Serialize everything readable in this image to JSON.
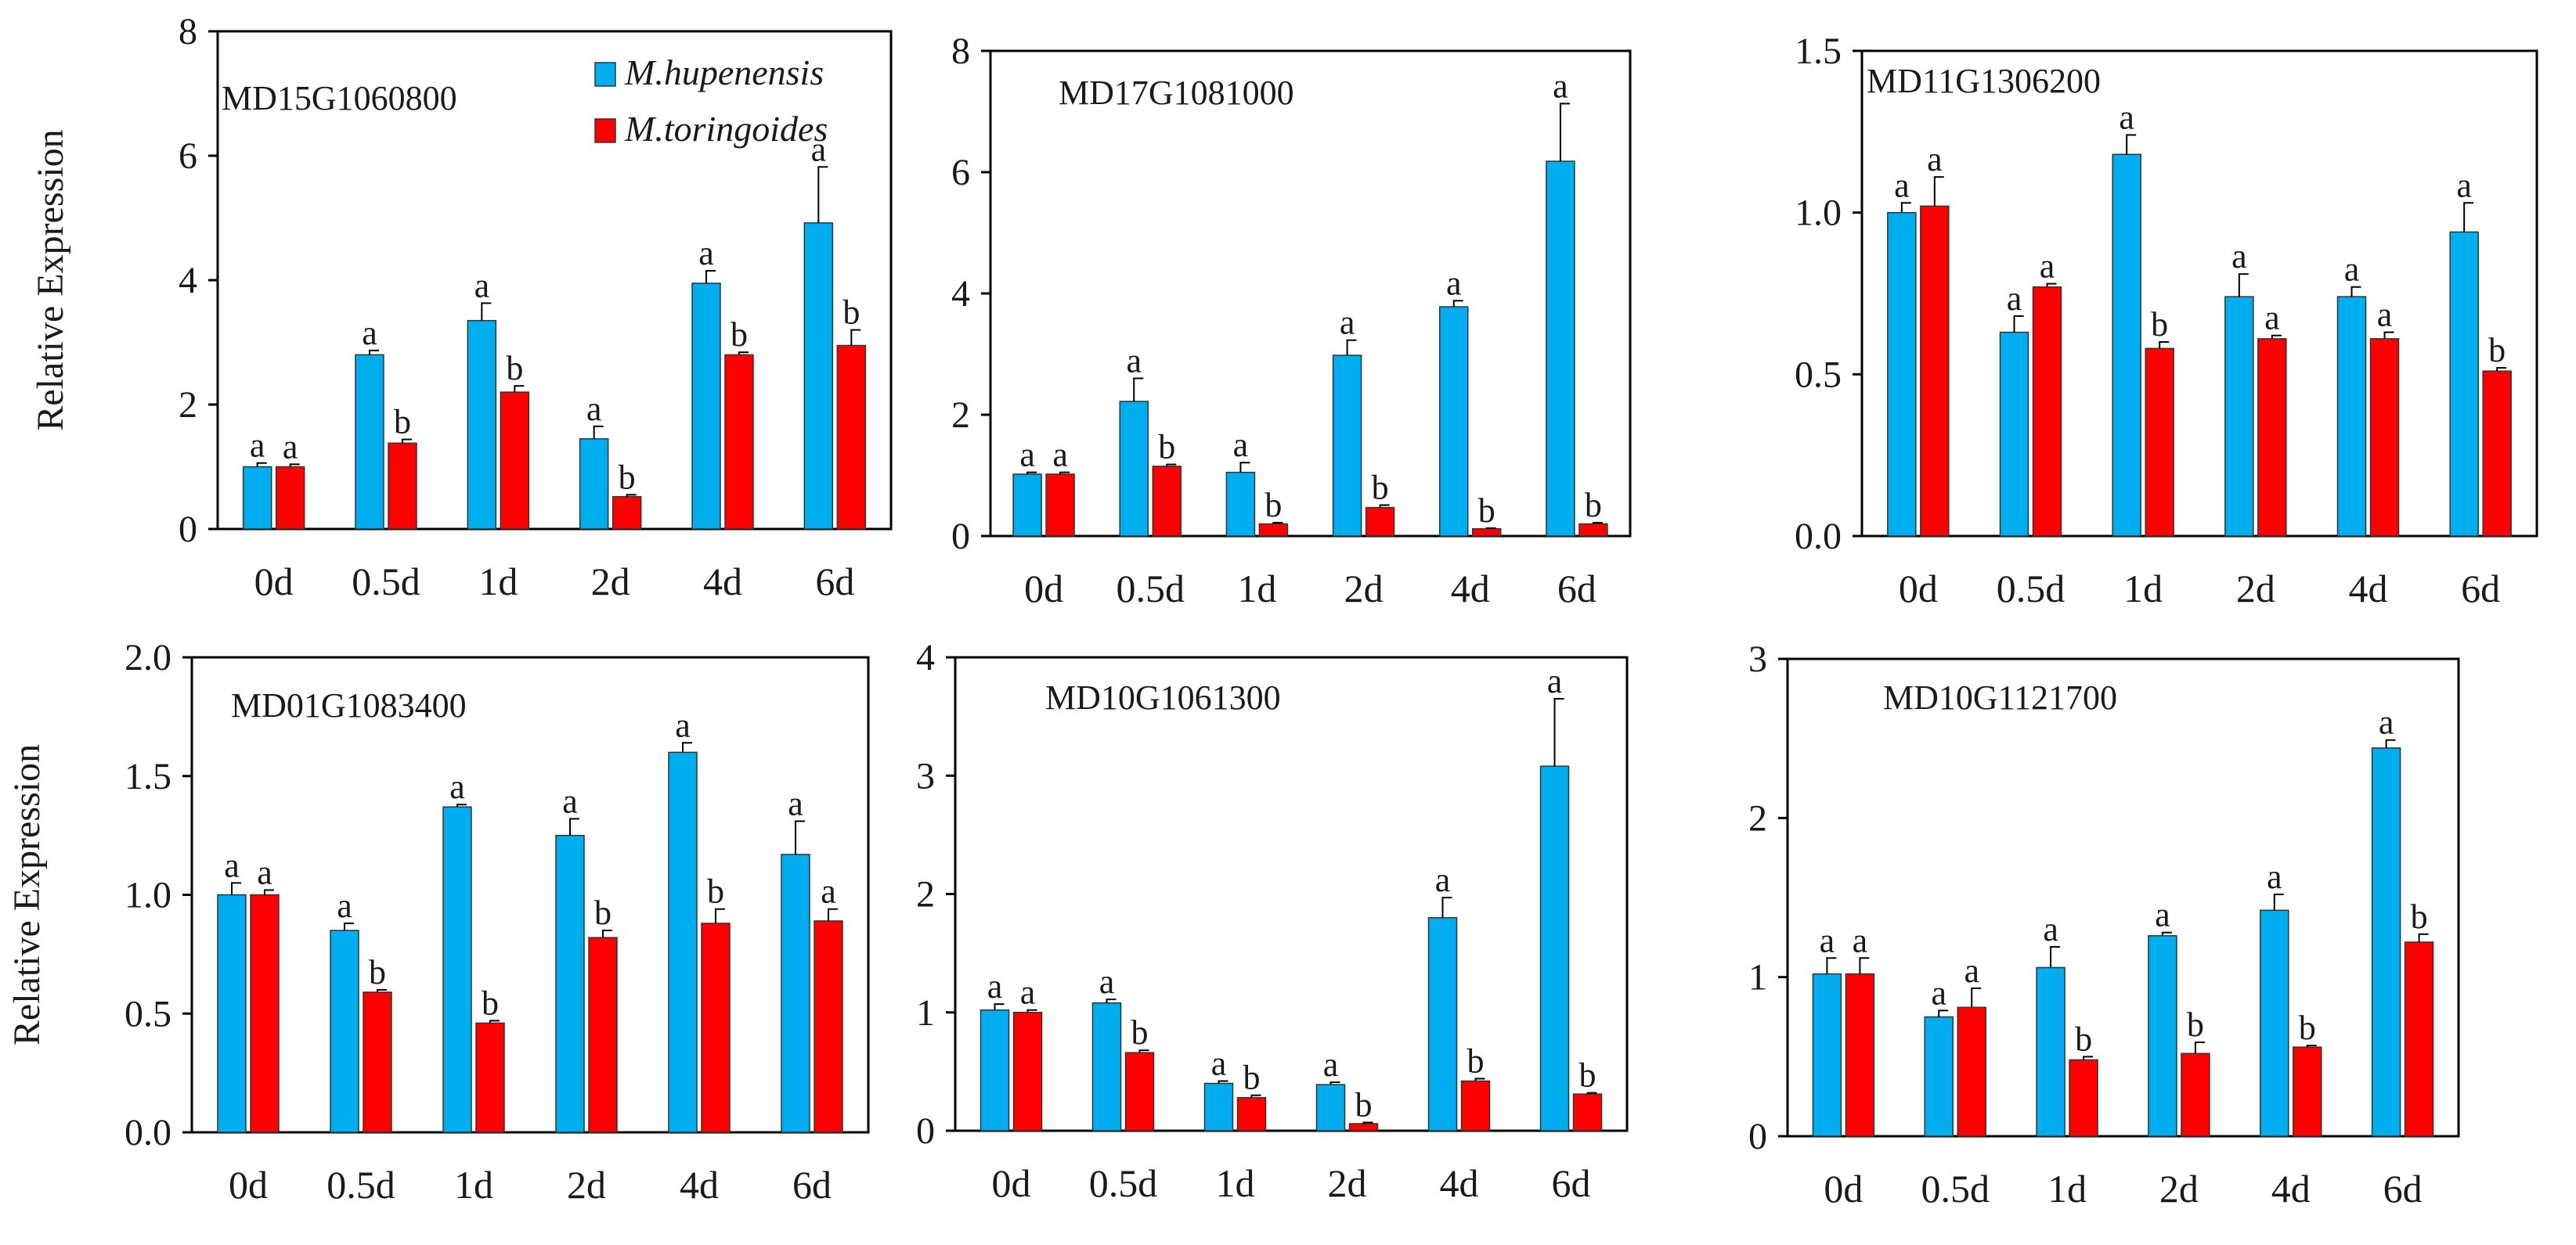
{
  "figure": {
    "ylabel": "Relative Expression",
    "legend": {
      "entries": [
        {
          "name": "M.hupenensis",
          "color": "#00aeef"
        },
        {
          "name": "M.toringoides",
          "color": "#ff0000"
        }
      ]
    }
  },
  "chart_data": [
    {
      "type": "bar",
      "title": "MD15G1060800",
      "categories": [
        "0d",
        "0.5d",
        "1d",
        "2d",
        "4d",
        "6d"
      ],
      "ylim": [
        0,
        8
      ],
      "yticks": [
        "0",
        "2",
        "4",
        "6",
        "8"
      ],
      "ylabel": "Relative Expression",
      "legend": "top-right",
      "series": [
        {
          "name": "M.hupenensis",
          "values": [
            1.0,
            2.8,
            3.35,
            1.45,
            3.95,
            4.92
          ],
          "errors": [
            0.06,
            0.07,
            0.28,
            0.2,
            0.2,
            0.9
          ],
          "letters": [
            "a",
            "a",
            "a",
            "a",
            "a",
            "a"
          ]
        },
        {
          "name": "M.toringoides",
          "values": [
            1.0,
            1.38,
            2.2,
            0.52,
            2.8,
            2.95
          ],
          "errors": [
            0.04,
            0.06,
            0.1,
            0.03,
            0.04,
            0.25
          ],
          "letters": [
            "a",
            "b",
            "b",
            "b",
            "b",
            "b"
          ]
        }
      ]
    },
    {
      "type": "bar",
      "title": "MD17G1081000",
      "categories": [
        "0d",
        "0.5d",
        "1d",
        "2d",
        "4d",
        "6d"
      ],
      "ylim": [
        0,
        8
      ],
      "yticks": [
        "0",
        "2",
        "4",
        "6",
        "8"
      ],
      "series": [
        {
          "name": "M.hupenensis",
          "values": [
            1.02,
            2.22,
            1.05,
            2.98,
            3.78,
            6.18
          ],
          "errors": [
            0.03,
            0.38,
            0.16,
            0.25,
            0.1,
            0.95
          ],
          "letters": [
            "a",
            "a",
            "a",
            "a",
            "a",
            "a"
          ]
        },
        {
          "name": "M.toringoides",
          "values": [
            1.02,
            1.15,
            0.2,
            0.47,
            0.12,
            0.2
          ],
          "errors": [
            0.03,
            0.03,
            0.02,
            0.04,
            0.01,
            0.02
          ],
          "letters": [
            "a",
            "b",
            "b",
            "b",
            "b",
            "b"
          ]
        }
      ]
    },
    {
      "type": "bar",
      "title": "MD11G1306200",
      "categories": [
        "0d",
        "0.5d",
        "1d",
        "2d",
        "4d",
        "6d"
      ],
      "ylim": [
        0,
        1.5
      ],
      "yticks": [
        "0.0",
        "0.5",
        "1.0",
        "1.5"
      ],
      "series": [
        {
          "name": "M.hupenensis",
          "values": [
            1.0,
            0.63,
            1.18,
            0.74,
            0.74,
            0.94
          ],
          "errors": [
            0.03,
            0.05,
            0.06,
            0.07,
            0.03,
            0.09
          ],
          "letters": [
            "a",
            "a",
            "a",
            "a",
            "a",
            "a"
          ]
        },
        {
          "name": "M.toringoides",
          "values": [
            1.02,
            0.77,
            0.58,
            0.61,
            0.61,
            0.51
          ],
          "errors": [
            0.09,
            0.01,
            0.02,
            0.01,
            0.02,
            0.01
          ],
          "letters": [
            "a",
            "a",
            "b",
            "a",
            "a",
            "b"
          ]
        }
      ]
    },
    {
      "type": "bar",
      "title": "MD01G1083400",
      "categories": [
        "0d",
        "0.5d",
        "1d",
        "2d",
        "4d",
        "6d"
      ],
      "ylim": [
        0,
        2.0
      ],
      "yticks": [
        "0.0",
        "0.5",
        "1.0",
        "1.5",
        "2.0"
      ],
      "ylabel": "Relative Expression",
      "series": [
        {
          "name": "M.hupenensis",
          "values": [
            1.0,
            0.85,
            1.37,
            1.25,
            1.6,
            1.17
          ],
          "errors": [
            0.05,
            0.03,
            0.01,
            0.07,
            0.04,
            0.14
          ],
          "letters": [
            "a",
            "a",
            "a",
            "a",
            "a",
            "a"
          ]
        },
        {
          "name": "M.toringoides",
          "values": [
            1.0,
            0.59,
            0.46,
            0.82,
            0.88,
            0.89
          ],
          "errors": [
            0.02,
            0.01,
            0.01,
            0.03,
            0.06,
            0.05
          ],
          "letters": [
            "a",
            "b",
            "b",
            "b",
            "b",
            "a"
          ]
        }
      ]
    },
    {
      "type": "bar",
      "title": "MD10G1061300",
      "categories": [
        "0d",
        "0.5d",
        "1d",
        "2d",
        "4d",
        "6d"
      ],
      "ylim": [
        0,
        4
      ],
      "yticks": [
        "0",
        "1",
        "2",
        "3",
        "4"
      ],
      "series": [
        {
          "name": "M.hupenensis",
          "values": [
            1.02,
            1.08,
            0.4,
            0.39,
            1.8,
            3.08
          ],
          "errors": [
            0.05,
            0.03,
            0.02,
            0.02,
            0.17,
            0.57
          ],
          "letters": [
            "a",
            "a",
            "a",
            "a",
            "a",
            "a"
          ]
        },
        {
          "name": "M.toringoides",
          "values": [
            1.0,
            0.66,
            0.28,
            0.06,
            0.42,
            0.31
          ],
          "errors": [
            0.02,
            0.02,
            0.02,
            0.01,
            0.02,
            0.01
          ],
          "letters": [
            "a",
            "b",
            "b",
            "b",
            "b",
            "b"
          ]
        }
      ]
    },
    {
      "type": "bar",
      "title": "MD10G1121700",
      "categories": [
        "0d",
        "0.5d",
        "1d",
        "2d",
        "4d",
        "6d"
      ],
      "ylim": [
        0,
        3
      ],
      "yticks": [
        "0",
        "1",
        "2",
        "3"
      ],
      "series": [
        {
          "name": "M.hupenensis",
          "values": [
            1.02,
            0.75,
            1.06,
            1.26,
            1.42,
            2.44
          ],
          "errors": [
            0.1,
            0.04,
            0.13,
            0.02,
            0.1,
            0.05
          ],
          "letters": [
            "a",
            "a",
            "a",
            "a",
            "a",
            "a"
          ]
        },
        {
          "name": "M.toringoides",
          "values": [
            1.02,
            0.81,
            0.48,
            0.52,
            0.56,
            1.22
          ],
          "errors": [
            0.1,
            0.12,
            0.02,
            0.07,
            0.01,
            0.05
          ],
          "letters": [
            "a",
            "a",
            "b",
            "b",
            "b",
            "b"
          ]
        }
      ]
    }
  ]
}
